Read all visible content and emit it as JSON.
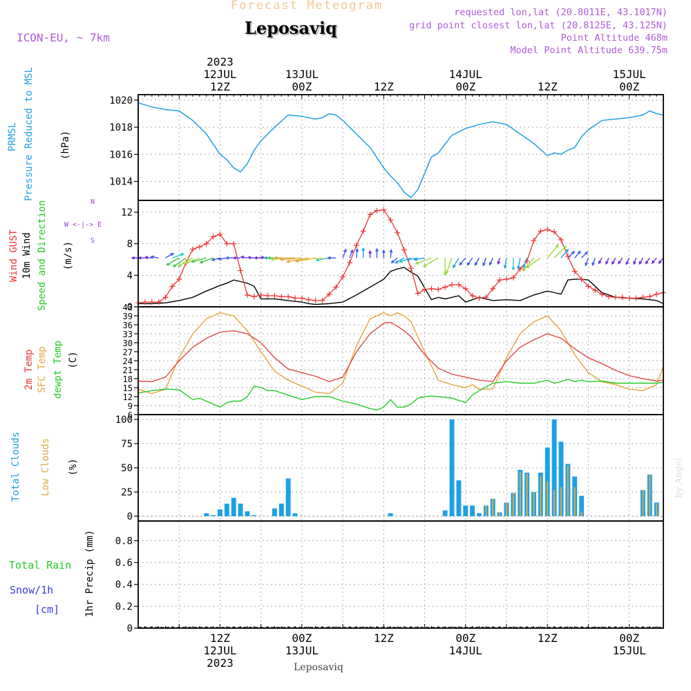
{
  "header": {
    "product": "Forecast Meteogram",
    "location": "Leposaviq",
    "model": "ICON-EU, ~ 7km",
    "requested": "requested lon,lat (20.8011E, 43.1017N)",
    "gridpoint": "grid point closest lon,lat (20.8125E, 43.125N)",
    "point_alt": "Point Altitude 468m",
    "model_alt": "Model Point Altitude 639.75m",
    "credit": "by Angel",
    "footer": "Leposaviq"
  },
  "colors": {
    "pressure": "#1ea0e6",
    "gust": "#ee3333",
    "wind": "#000000",
    "t2m": "#e04848",
    "sfc": "#e6a43a",
    "dewpt": "#22cc22",
    "total_clouds": "#1ea0e6",
    "low_clouds": "#d6ac4a",
    "rain": "#22cc22",
    "snow": "#3a3ae6",
    "header_purple": "#b05ad8",
    "header_orange": "#f0c890",
    "label_purple": "#a040d0"
  },
  "top_axis": [
    {
      "t": 12,
      "lines": [
        "2023",
        "12JUL",
        "12Z"
      ]
    },
    {
      "t": 24,
      "lines": [
        "13JUL",
        "00Z"
      ]
    },
    {
      "t": 36,
      "lines": [
        "12Z"
      ]
    },
    {
      "t": 48,
      "lines": [
        "14JUL",
        "00Z"
      ]
    },
    {
      "t": 60,
      "lines": [
        "12Z"
      ]
    },
    {
      "t": 72,
      "lines": [
        "15JUL",
        "00Z"
      ]
    }
  ],
  "bottom_axis": [
    {
      "t": 12,
      "lines": [
        "12Z",
        "12JUL",
        "2023"
      ]
    },
    {
      "t": 24,
      "lines": [
        "00Z",
        "13JUL"
      ]
    },
    {
      "t": 36,
      "lines": [
        "12Z"
      ]
    },
    {
      "t": 48,
      "lines": [
        "00Z",
        "14JUL"
      ]
    },
    {
      "t": 60,
      "lines": [
        "12Z"
      ]
    },
    {
      "t": 72,
      "lines": [
        "00Z",
        "15JUL"
      ]
    }
  ],
  "panel_labels": {
    "pressure": [
      "PRMSL",
      "Pressure Reduced to MSL",
      "(hPa)"
    ],
    "wind": [
      "Wind GUST",
      "10m Wind",
      "Speed and Direction",
      "(m/s)"
    ],
    "compass": [
      "N",
      "W <-|-> E",
      "S"
    ],
    "temp": [
      "2m Temp",
      "SFC Temp",
      "dewpt Temp",
      "(C)"
    ],
    "clouds": [
      "Total Clouds",
      "Low Clouds",
      "(%)"
    ],
    "precip": [
      "Total  Rain",
      "Snow/1h",
      "[cm]",
      "1hr Precip (mm)"
    ]
  },
  "chart_data": [
    {
      "type": "line",
      "name": "pressure",
      "ylabel": "Pressure Reduced to MSL (hPa)",
      "ylim": [
        1012.6,
        1020.4
      ],
      "yticks": [
        1014,
        1016,
        1018,
        1020
      ],
      "x": [
        0,
        2,
        4,
        6,
        8,
        10,
        12,
        13,
        14,
        15,
        16,
        17,
        18,
        20,
        22,
        24,
        26,
        27,
        28,
        29,
        30,
        32,
        34,
        36,
        37,
        38,
        39,
        40,
        41,
        42,
        43,
        44,
        46,
        48,
        50,
        52,
        54,
        56,
        58,
        60,
        61,
        62,
        63,
        64,
        65,
        66,
        68,
        70,
        72,
        74,
        75,
        76,
        77
      ],
      "values": [
        1019.8,
        1019.5,
        1019.3,
        1019.2,
        1018.5,
        1017.5,
        1016.0,
        1015.6,
        1015.0,
        1014.7,
        1015.3,
        1016.3,
        1017.0,
        1018.0,
        1018.9,
        1018.8,
        1018.6,
        1018.7,
        1019.0,
        1018.9,
        1018.5,
        1017.5,
        1016.5,
        1015.0,
        1014.4,
        1013.9,
        1013.2,
        1012.8,
        1013.4,
        1014.6,
        1015.8,
        1016.1,
        1017.4,
        1017.9,
        1018.2,
        1018.4,
        1018.2,
        1017.5,
        1016.8,
        1015.9,
        1016.1,
        1016.0,
        1016.3,
        1016.5,
        1017.3,
        1017.8,
        1018.5,
        1018.6,
        1018.7,
        1018.9,
        1019.2,
        1019.0,
        1018.9
      ],
      "grid": true
    },
    {
      "type": "line",
      "name": "wind",
      "ylabel": "(m/s)",
      "ylim": [
        0,
        13.5
      ],
      "yticks": [
        0,
        4,
        8,
        12
      ],
      "series": [
        {
          "name": "Wind GUST",
          "x": [
            0,
            1,
            2,
            3,
            4,
            5,
            6,
            7,
            8,
            9,
            10,
            11,
            12,
            13,
            14,
            15,
            16,
            17,
            18,
            19,
            20,
            21,
            22,
            23,
            24,
            25,
            26,
            27,
            28,
            29,
            30,
            31,
            32,
            33,
            34,
            35,
            36,
            37,
            38,
            39,
            40,
            41,
            42,
            43,
            44,
            45,
            46,
            47,
            48,
            49,
            50,
            51,
            52,
            53,
            54,
            55,
            56,
            57,
            58,
            59,
            60,
            61,
            62,
            63,
            64,
            65,
            66,
            67,
            68,
            69,
            70,
            71,
            72,
            73,
            74,
            75,
            76,
            77
          ],
          "values": [
            0.5,
            0.6,
            0.6,
            0.6,
            1.2,
            2.6,
            3.5,
            5.6,
            7.3,
            7.6,
            8.0,
            8.9,
            9.2,
            8.0,
            8.0,
            4.6,
            1.5,
            1.3,
            1.5,
            1.4,
            1.4,
            1.3,
            1.3,
            1.1,
            1.1,
            0.9,
            0.8,
            0.8,
            1.6,
            2.5,
            3.8,
            5.6,
            7.8,
            9.6,
            11.7,
            12.2,
            12.3,
            11.0,
            9.4,
            7.2,
            4.9,
            1.7,
            2.2,
            2.3,
            2.2,
            2.5,
            2.8,
            2.8,
            2.3,
            1.4,
            1.1,
            1.2,
            2.3,
            3.4,
            3.5,
            3.7,
            4.8,
            5.8,
            8.4,
            9.6,
            9.8,
            9.5,
            8.5,
            6.4,
            4.5,
            3.5,
            2.6,
            2.1,
            1.6,
            1.3,
            1.2,
            1.2,
            1.1,
            1.1,
            1.2,
            1.3,
            1.6,
            1.8
          ]
        },
        {
          "name": "10m Wind",
          "x": [
            0,
            2,
            4,
            6,
            8,
            10,
            12,
            13,
            14,
            15,
            16,
            17,
            18,
            20,
            22,
            24,
            25,
            26,
            28,
            30,
            32,
            34,
            36,
            37,
            38,
            39,
            40,
            41,
            42,
            43,
            44,
            45,
            46,
            47,
            48,
            50,
            52,
            54,
            56,
            58,
            60,
            61,
            62,
            63,
            64,
            65,
            66,
            68,
            70,
            72,
            74,
            75,
            76,
            77
          ],
          "values": [
            0.4,
            0.4,
            0.5,
            0.8,
            1.2,
            2.0,
            2.7,
            3.0,
            3.4,
            3.2,
            3.0,
            2.6,
            1.0,
            1.0,
            0.8,
            0.6,
            0.4,
            0.3,
            0.4,
            0.6,
            1.5,
            2.5,
            3.5,
            4.5,
            4.8,
            5.0,
            4.4,
            3.9,
            2.4,
            0.9,
            1.2,
            1.0,
            1.2,
            1.4,
            0.6,
            1.2,
            0.8,
            0.9,
            0.8,
            1.5,
            2.0,
            1.8,
            1.6,
            3.4,
            3.5,
            3.5,
            3.4,
            1.8,
            1.2,
            1.1,
            1.0,
            0.9,
            0.8,
            0.4
          ]
        }
      ],
      "grid": true
    },
    {
      "type": "line",
      "name": "temperature",
      "ylabel": "(C)",
      "ylim": [
        6,
        42
      ],
      "yticks": [
        6,
        9,
        12,
        15,
        18,
        21,
        24,
        27,
        30,
        33,
        36,
        39,
        42
      ],
      "series": [
        {
          "name": "2m Temp",
          "x": [
            0,
            2,
            4,
            6,
            8,
            10,
            12,
            14,
            16,
            18,
            20,
            22,
            24,
            26,
            28,
            30,
            32,
            34,
            36,
            37,
            38,
            39,
            40,
            42,
            44,
            46,
            48,
            50,
            52,
            54,
            56,
            58,
            60,
            62,
            64,
            66,
            68,
            70,
            72,
            74,
            76,
            77
          ],
          "values": [
            17.2,
            17.0,
            18.5,
            24,
            28.5,
            31.5,
            33.5,
            34,
            33,
            30,
            25,
            21.2,
            20,
            18.8,
            17,
            18.5,
            27,
            33,
            36.5,
            36.8,
            35.5,
            34,
            32,
            26,
            21.5,
            19.5,
            18.5,
            17.5,
            17,
            24,
            28.5,
            31,
            33,
            31.5,
            28,
            25,
            23,
            20.8,
            19,
            18,
            17.2,
            17.5
          ]
        },
        {
          "name": "SFC Temp",
          "x": [
            0,
            2,
            4,
            6,
            8,
            10,
            12,
            14,
            16,
            18,
            20,
            22,
            24,
            26,
            28,
            30,
            32,
            34,
            36,
            37,
            38,
            39,
            40,
            42,
            44,
            46,
            48,
            49,
            50,
            52,
            54,
            56,
            58,
            60,
            62,
            64,
            66,
            68,
            70,
            72,
            74,
            76,
            77
          ],
          "values": [
            14.5,
            13.0,
            14.5,
            25,
            33,
            38,
            40,
            39,
            34,
            27,
            20.5,
            17.5,
            15.5,
            13.5,
            13,
            16.5,
            29,
            38,
            40,
            39,
            40,
            39,
            37,
            27,
            17.5,
            16,
            15,
            16,
            14.5,
            14.5,
            25,
            33,
            37,
            39,
            34,
            26,
            20,
            17,
            16,
            14.5,
            14,
            16,
            22
          ]
        },
        {
          "name": "dewpt Temp",
          "x": [
            0,
            2,
            4,
            6,
            8,
            9,
            10,
            11,
            12,
            13,
            14,
            15,
            16,
            17,
            18,
            19,
            20,
            22,
            24,
            26,
            28,
            30,
            32,
            34,
            35,
            36,
            37,
            38,
            39,
            40,
            41,
            42,
            43,
            44,
            46,
            48,
            49,
            50,
            52,
            54,
            56,
            58,
            60,
            61,
            62,
            63,
            64,
            65,
            66,
            68,
            70,
            72,
            74,
            76,
            77
          ],
          "values": [
            13.2,
            14,
            14.5,
            14.3,
            11,
            11.5,
            10.5,
            9.5,
            8.5,
            10,
            10.5,
            10.5,
            12,
            15.5,
            15,
            14,
            14,
            12.5,
            11,
            12,
            12,
            10.5,
            9.5,
            8,
            7.5,
            8.5,
            11,
            8.5,
            8.5,
            9.5,
            11.5,
            12,
            12.2,
            12,
            11.5,
            10,
            12.5,
            14,
            16.5,
            17,
            16.5,
            16.5,
            17.5,
            16.5,
            17,
            17.8,
            17,
            17.5,
            17,
            17.2,
            16.5,
            16.5,
            16.5,
            16.5,
            16.8
          ]
        }
      ],
      "grid": true
    },
    {
      "type": "bar",
      "name": "clouds",
      "ylabel": "(%)",
      "ylim": [
        -5,
        105
      ],
      "yticks": [
        0,
        25,
        50,
        75,
        100
      ],
      "series": [
        {
          "name": "Total Clouds",
          "x": [
            10,
            11,
            12,
            13,
            14,
            15,
            16,
            17,
            20,
            21,
            22,
            23,
            37,
            45,
            46,
            47,
            48,
            49,
            50,
            51,
            52,
            53,
            54,
            55,
            56,
            57,
            58,
            59,
            60,
            61,
            62,
            63,
            64,
            65,
            74,
            75,
            76
          ],
          "values": [
            3,
            1,
            7,
            13,
            19,
            13,
            5,
            1,
            8,
            13,
            39,
            3,
            3,
            6,
            100,
            37,
            11,
            11,
            3,
            11,
            18,
            4,
            14,
            24,
            48,
            45,
            25,
            45,
            71,
            100,
            77,
            54,
            41,
            21,
            27,
            43,
            14
          ]
        },
        {
          "name": "Low Clouds",
          "x": [
            51,
            52,
            53,
            54,
            55,
            56,
            57,
            58,
            59,
            60,
            61,
            62,
            63,
            64,
            65,
            74,
            75,
            76
          ],
          "values": [
            11,
            18,
            4,
            14,
            24,
            46,
            44,
            25,
            41,
            36,
            27,
            30,
            52,
            30,
            5,
            27,
            43,
            13
          ]
        }
      ],
      "grid": true
    },
    {
      "type": "line",
      "name": "precipitation",
      "ylabel": "1hr Precip (mm)",
      "ylim": [
        0,
        0.98
      ],
      "yticks": [
        0,
        0.2,
        0.4,
        0.6,
        0.8
      ],
      "series": [
        {
          "name": "Total Rain",
          "values": []
        },
        {
          "name": "Snow/1h",
          "values": []
        }
      ],
      "grid": true
    }
  ],
  "wind_barbs": {
    "x": [
      0,
      1,
      2,
      3,
      4,
      5,
      6,
      7,
      8,
      9,
      10,
      11,
      12,
      13,
      14,
      15,
      16,
      17,
      18,
      19,
      20,
      21,
      22,
      23,
      24,
      25,
      26,
      27,
      28,
      29,
      30,
      31,
      32,
      33,
      34,
      35,
      36,
      37,
      38,
      39,
      40,
      41,
      42,
      43,
      44,
      45,
      46,
      47,
      48,
      49,
      50,
      51,
      52,
      53,
      54,
      55,
      56,
      57,
      58,
      59,
      60,
      61,
      62,
      63,
      64,
      65,
      66,
      67,
      68,
      69,
      70,
      71,
      72,
      73,
      74,
      75,
      76,
      77
    ],
    "dir_deg": [
      270,
      270,
      275,
      280,
      60,
      70,
      240,
      235,
      240,
      250,
      255,
      250,
      255,
      260,
      270,
      270,
      280,
      275,
      270,
      275,
      270,
      270,
      265,
      270,
      265,
      260,
      260,
      265,
      260,
      270,
      20,
      20,
      5,
      0,
      0,
      0,
      0,
      5,
      230,
      240,
      250,
      260,
      260,
      250,
      240,
      180,
      200,
      210,
      220,
      215,
      210,
      200,
      205,
      195,
      190,
      180,
      190,
      200,
      220,
      235,
      40,
      45,
      40,
      45,
      40,
      45,
      200,
      200,
      210,
      205,
      210,
      215,
      205,
      200,
      210,
      215,
      220,
      220
    ],
    "speed": [
      0.4,
      0.4,
      0.5,
      0.8,
      1.2,
      2.0,
      2.7,
      3.0,
      3.4,
      3.2,
      3.0,
      2.6,
      1.0,
      1.0,
      0.8,
      0.6,
      0.4,
      0.3,
      0.4,
      0.6,
      1.5,
      2.5,
      3.5,
      4.5,
      4.8,
      5.0,
      4.4,
      3.9,
      2.4,
      0.9,
      1.2,
      1.0,
      1.2,
      1.4,
      0.6,
      1.2,
      0.8,
      0.9,
      0.8,
      1.5,
      2.0,
      1.8,
      1.6,
      3.4,
      3.5,
      3.5,
      3.4,
      1.8,
      1.2,
      1.1,
      1.0,
      0.9,
      0.8,
      0.4,
      1.5,
      2.0,
      1.8,
      1.6,
      3.4,
      3.5,
      3.5,
      3.4,
      1.8,
      1.2,
      1.1,
      1.0,
      0.9,
      0.8,
      0.4,
      0.5,
      0.6,
      0.6,
      0.6,
      0.5,
      0.6,
      0.6,
      0.6,
      0.6
    ]
  }
}
